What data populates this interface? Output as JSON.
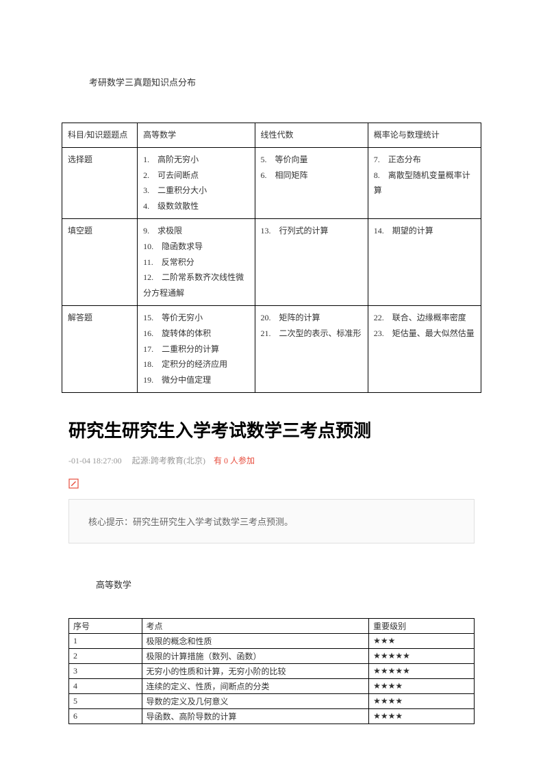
{
  "page_title": "考研数学三真题知识点分布",
  "table1": {
    "headers": [
      "科目/知识题题点",
      "高等数学",
      "线性代数",
      "概率论与数理统计"
    ],
    "rows": [
      {
        "label": "选择题",
        "c1": [
          "1.　高阶无穷小",
          "2.　可去间断点",
          "3.　二重积分大小",
          "4.　级数敛散性"
        ],
        "c2": [
          "5.　等价向量",
          "6.　相同矩阵"
        ],
        "c3": [
          "7.　正态分布",
          "8.　离散型随机变量概率计算"
        ]
      },
      {
        "label": "填空题",
        "c1": [
          "9.　求极限",
          "10.　隐函数求导",
          "11.　反常积分",
          "12.　二阶常系数齐次线性微分方程通解"
        ],
        "c2": [
          "13.　行列式的计算"
        ],
        "c3": [
          "14.　期望的计算"
        ]
      },
      {
        "label": "解答题",
        "c1": [
          "15.　等价无穷小",
          "16.　旋转体的体积",
          "17.　二重积分的计算",
          "18.　定积分的经济应用",
          "19.　微分中值定理"
        ],
        "c2": [
          "20.　矩阵的计算",
          "21.　二次型的表示、标准形"
        ],
        "c3": [
          "22.　联合、边缘概率密度",
          "23.　矩估量、最大似然估量"
        ]
      }
    ]
  },
  "article_title": "研究生研究生入学考试数学三考点预测",
  "meta": {
    "date": "-01-04 18:27:00",
    "source_label": "起源:",
    "source": "跨考教育(北京)",
    "participants": "有 0 人参加"
  },
  "hint": "核心提示：研究生研究生入学考试数学三考点预测。",
  "section_header": "高等数学",
  "table2": {
    "headers": [
      "序号",
      "考点",
      "重要级别"
    ],
    "rows": [
      {
        "no": "1",
        "pt": "极限的概念和性质",
        "stars": "★★★"
      },
      {
        "no": "2",
        "pt": "极限的计算措施（数列、函数）",
        "stars": "★★★★★"
      },
      {
        "no": "3",
        "pt": "无穷小的性质和计算，无穷小阶的比较",
        "stars": "★★★★★"
      },
      {
        "no": "4",
        "pt": "连续的定义、性质，间断点的分类",
        "stars": "★★★★"
      },
      {
        "no": "5",
        "pt": "导数的定义及几何意义",
        "stars": "★★★★"
      },
      {
        "no": "6",
        "pt": "导函数、高阶导数的计算",
        "stars": "★★★★"
      }
    ]
  },
  "colors": {
    "text": "#333333",
    "border": "#000000",
    "meta": "#999999",
    "accent": "#e74c3c",
    "hint_bg": "#fafafa",
    "hint_border": "#e0e0e0"
  }
}
